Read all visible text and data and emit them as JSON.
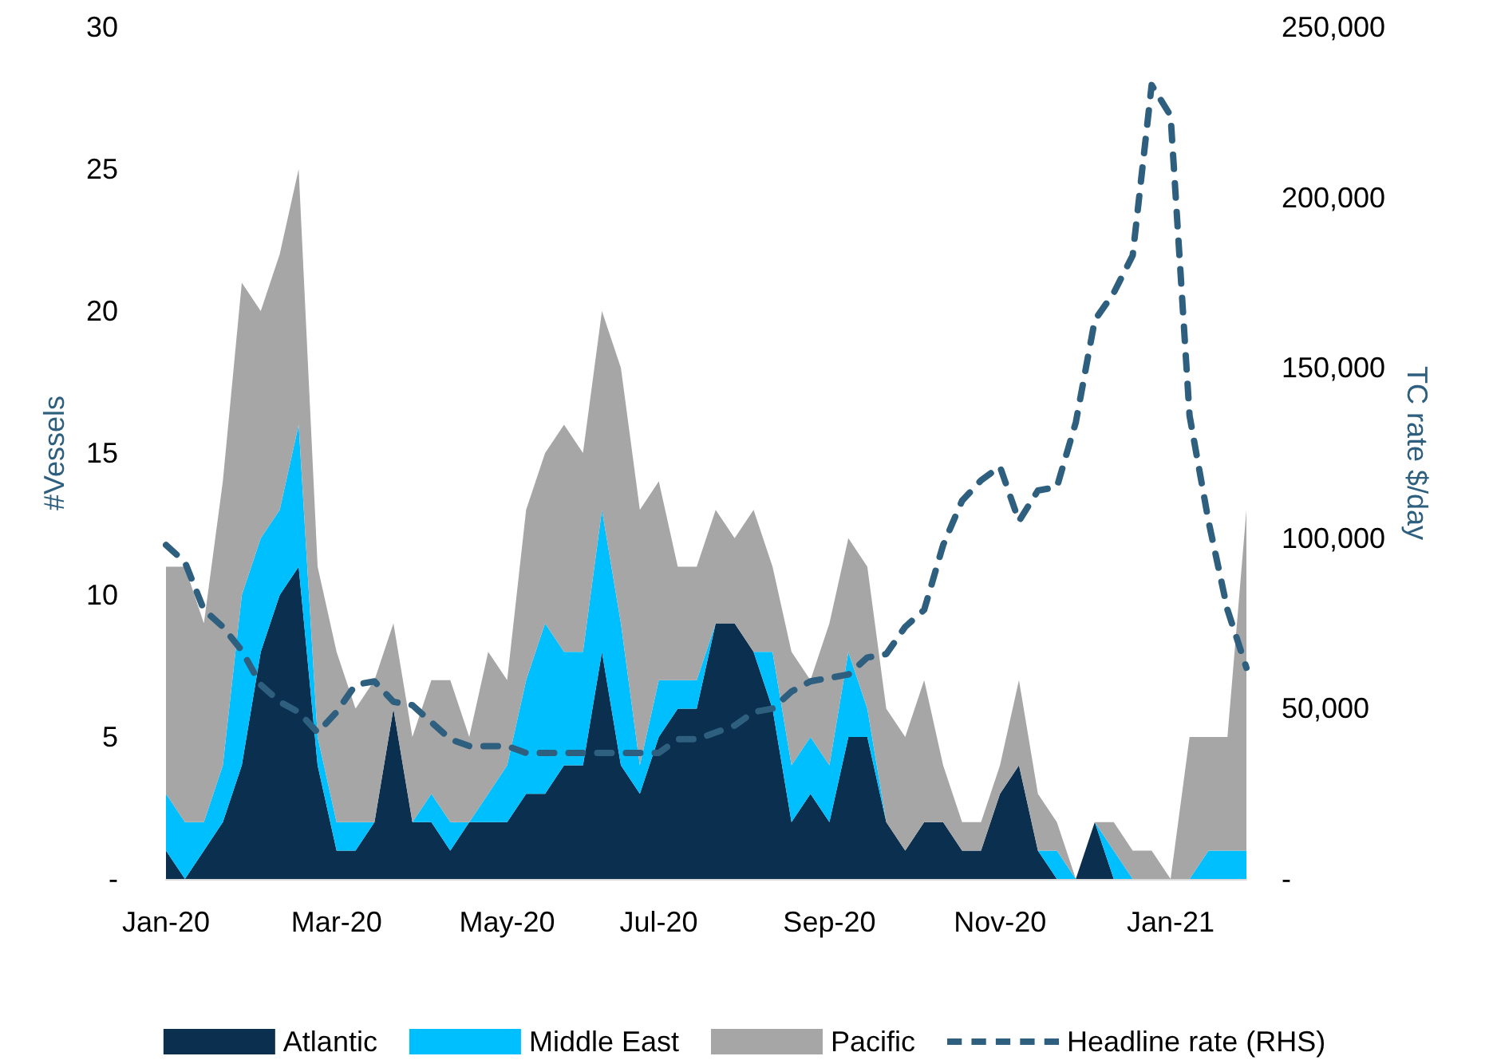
{
  "chart_data": {
    "type": "area",
    "stacked": true,
    "ylabel": "#Vessels",
    "y2label": "TC rate $/day",
    "categories": [
      "Jan-20",
      null,
      null,
      null,
      null,
      null,
      null,
      null,
      null,
      "Mar-20",
      null,
      null,
      null,
      null,
      null,
      null,
      null,
      null,
      "May-20",
      null,
      null,
      null,
      null,
      null,
      null,
      null,
      "Jul-20",
      null,
      null,
      null,
      null,
      null,
      null,
      null,
      null,
      "Sep-20",
      null,
      null,
      null,
      null,
      null,
      null,
      null,
      null,
      "Nov-20",
      null,
      null,
      null,
      null,
      null,
      null,
      null,
      null,
      "Jan-21",
      null,
      null,
      null,
      null
    ],
    "series": [
      {
        "name": "Atlantic",
        "color": "#0b2f4e",
        "values": [
          1,
          0,
          1,
          2,
          4,
          8,
          10,
          11,
          4,
          1,
          1,
          2,
          6,
          2,
          2,
          1,
          2,
          2,
          2,
          3,
          3,
          4,
          4,
          8,
          4,
          3,
          5,
          6,
          6,
          9,
          9,
          8,
          6,
          2,
          3,
          2,
          5,
          5,
          2,
          1,
          2,
          2,
          1,
          1,
          3,
          4,
          1,
          0,
          0,
          2,
          0,
          0,
          0,
          0,
          0,
          0,
          0,
          0
        ]
      },
      {
        "name": "Middle East",
        "color": "#00bfff",
        "values": [
          2,
          2,
          1,
          2,
          6,
          4,
          3,
          5,
          1,
          1,
          1,
          0,
          0,
          0,
          1,
          1,
          0,
          1,
          2,
          4,
          6,
          4,
          4,
          5,
          5,
          1,
          2,
          1,
          1,
          0,
          0,
          0,
          2,
          2,
          2,
          2,
          3,
          1,
          0,
          0,
          0,
          0,
          0,
          0,
          0,
          0,
          0,
          1,
          0,
          0,
          1,
          0,
          0,
          0,
          0,
          1,
          1,
          1
        ]
      },
      {
        "name": "Pacific",
        "color": "#a6a6a6",
        "values": [
          8,
          9,
          7,
          10,
          11,
          8,
          9,
          9,
          6,
          6,
          4,
          5,
          3,
          3,
          4,
          5,
          3,
          5,
          3,
          6,
          6,
          8,
          7,
          7,
          9,
          9,
          7,
          4,
          4,
          4,
          3,
          5,
          3,
          4,
          2,
          5,
          4,
          5,
          4,
          4,
          5,
          2,
          1,
          1,
          1,
          3,
          2,
          1,
          0,
          0,
          1,
          1,
          1,
          0,
          5,
          4,
          4,
          12
        ]
      },
      {
        "name": "Headline rate (RHS)",
        "type": "line",
        "axis": "y2",
        "color": "#2e5f7f",
        "line_style": "dashed",
        "marker": "none",
        "values": [
          98000,
          93000,
          79000,
          74000,
          67000,
          57000,
          52000,
          49000,
          43000,
          49000,
          57000,
          58000,
          52000,
          51000,
          46000,
          41000,
          39000,
          39000,
          39000,
          37000,
          37000,
          37000,
          37000,
          37000,
          37000,
          37000,
          37000,
          41000,
          41000,
          43000,
          45000,
          49000,
          50000,
          55000,
          58000,
          59000,
          60000,
          65000,
          66000,
          74000,
          79000,
          98000,
          111000,
          117000,
          121000,
          105000,
          114000,
          115000,
          134000,
          164000,
          172000,
          183000,
          233000,
          224000,
          136000,
          105000,
          79000,
          62000
        ]
      }
    ],
    "ylim": [
      0,
      30
    ],
    "yticks": [
      {
        "value": 0,
        "label": "-"
      },
      5,
      10,
      15,
      20,
      25,
      30
    ],
    "y2lim": [
      0,
      250000
    ],
    "y2ticks": [
      {
        "value": 0,
        "label": "-"
      },
      {
        "value": 50000,
        "label": "50,000"
      },
      {
        "value": 100000,
        "label": "100,000"
      },
      {
        "value": 150000,
        "label": "150,000"
      },
      {
        "value": 200000,
        "label": "200,000"
      },
      {
        "value": 250000,
        "label": "250,000"
      }
    ],
    "grid": false,
    "legend": "bottom"
  }
}
